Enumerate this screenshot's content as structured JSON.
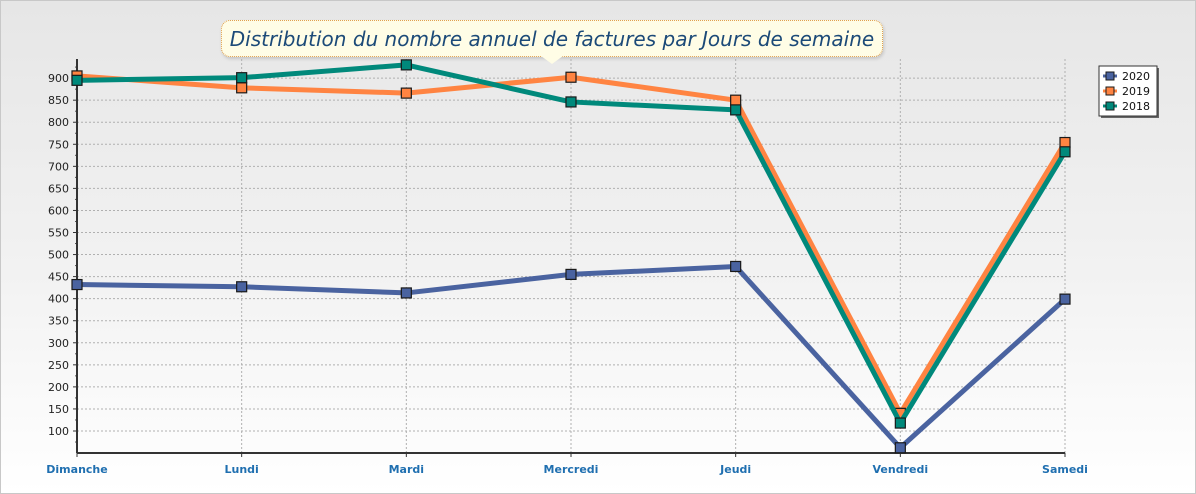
{
  "chart_data": {
    "type": "line",
    "title": "Distribution du nombre annuel de factures par Jours de semaine",
    "categories": [
      "Dimanche",
      "Lundi",
      "Mardi",
      "Mercredi",
      "Jeudi",
      "Vendredi",
      "Samedi"
    ],
    "yticks": [
      100,
      150,
      200,
      250,
      300,
      350,
      400,
      450,
      500,
      550,
      600,
      650,
      700,
      750,
      800,
      850,
      900
    ],
    "ylim": [
      75,
      950
    ],
    "grid": true,
    "legend_position": "top-right",
    "series": [
      {
        "name": "2020",
        "color": "#4a63a0",
        "values": [
          432,
          427,
          413,
          455,
          473,
          62,
          399
        ]
      },
      {
        "name": "2019",
        "color": "#ff8442",
        "values": [
          905,
          878,
          866,
          902,
          850,
          140,
          754
        ]
      },
      {
        "name": "2018",
        "color": "#00897b",
        "values": [
          895,
          901,
          930,
          846,
          828,
          118,
          733
        ]
      }
    ]
  }
}
